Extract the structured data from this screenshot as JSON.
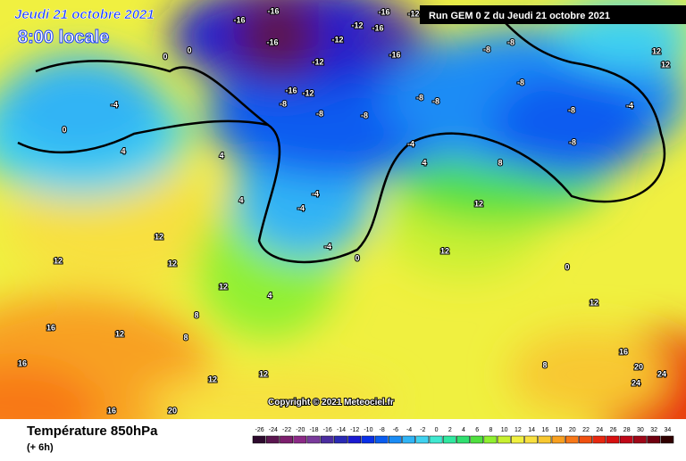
{
  "header": {
    "date": "Jeudi 21 octobre 2021",
    "local_time": "8:00 locale",
    "run": "Run GEM 0 Z du Jeudi 21 octobre 2021"
  },
  "copyright": "Copyright © 2021 Meteociel.fr",
  "footer": {
    "title": "Température 850hPa",
    "lead": "(+ 6h)"
  },
  "map_labels": [
    -16,
    -16,
    -16,
    -12,
    -16,
    -12,
    -12,
    -16,
    -16,
    -12,
    -16,
    -12,
    -8,
    -8,
    -8,
    -8,
    -8,
    -8,
    -8,
    -8,
    -4,
    -8,
    -8,
    -4,
    -4,
    -4,
    -4,
    -4,
    0,
    0,
    0,
    4,
    4,
    4,
    0,
    4,
    8,
    12,
    12,
    12,
    12,
    12,
    12,
    12,
    16,
    16,
    16,
    20,
    20,
    24,
    24,
    12,
    8,
    4,
    8,
    8,
    12,
    12,
    16,
    0,
    12,
    12
  ],
  "legend": {
    "levels": [
      -26,
      -24,
      -22,
      -20,
      -18,
      -16,
      -14,
      -12,
      -10,
      -8,
      -6,
      -4,
      -2,
      0,
      2,
      4,
      6,
      8,
      10,
      12,
      14,
      16,
      18,
      20,
      22,
      24,
      26,
      28,
      30,
      32,
      34
    ],
    "colors": [
      "#2d0a2d",
      "#5b1650",
      "#7d1f6e",
      "#8c2a87",
      "#7a3a9c",
      "#4b2da0",
      "#2a2ab5",
      "#1a1ad2",
      "#0a30e8",
      "#0a5cf0",
      "#1a8cf5",
      "#30b4f5",
      "#40d2f0",
      "#40e8d0",
      "#30e8a0",
      "#30e070",
      "#50e040",
      "#90f030",
      "#c8f030",
      "#f0f040",
      "#f8e040",
      "#f8c830",
      "#f8a020",
      "#f87818",
      "#f05010",
      "#e82810",
      "#d81010",
      "#c00818",
      "#a00818",
      "#700010",
      "#300000"
    ]
  }
}
